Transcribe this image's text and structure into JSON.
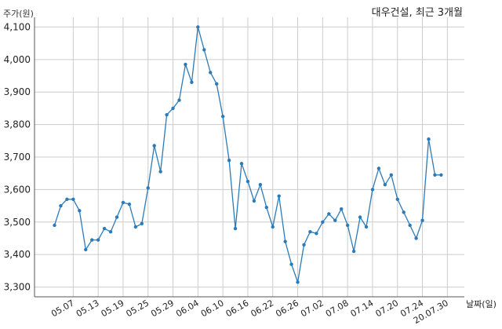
{
  "chart_data": {
    "type": "line",
    "title": "대우건설, 최근 3개월",
    "ylabel": "주가(원)",
    "xlabel": "날짜(일)",
    "ylim": [
      3270,
      4130
    ],
    "yticks": [
      "3,300",
      "3,400",
      "3,500",
      "3,600",
      "3,700",
      "3,800",
      "3,900",
      "4,000",
      "4,100"
    ],
    "ytick_values": [
      3300,
      3400,
      3500,
      3600,
      3700,
      3800,
      3900,
      4000,
      4100
    ],
    "xticks": [
      "05.07",
      "05.13",
      "05.19",
      "05.25",
      "05.29",
      "06.04",
      "06.10",
      "06.16",
      "06.22",
      "06.26",
      "07.02",
      "07.08",
      "07.14",
      "07.20",
      "07.24",
      "20.07.30"
    ],
    "xtick_index": [
      3,
      7,
      11,
      15,
      19,
      23,
      27,
      31,
      35,
      39,
      43,
      47,
      51,
      55,
      59,
      63
    ],
    "grid": true,
    "color": "#2b7bb9",
    "series": [
      {
        "values": [
          3490,
          3550,
          3570,
          3570,
          3535,
          3415,
          3445,
          3445,
          3480,
          3470,
          3515,
          3560,
          3555,
          3485,
          3495,
          3605,
          3735,
          3655,
          3830,
          3850,
          3875,
          3985,
          3930,
          4100,
          4030,
          3960,
          3925,
          3825,
          3690,
          3480,
          3680,
          3625,
          3565,
          3615,
          3545,
          3485,
          3580,
          3440,
          3370,
          3315,
          3430,
          3470,
          3465,
          3500,
          3525,
          3505,
          3540,
          3490,
          3410,
          3515,
          3485,
          3600,
          3665,
          3615,
          3645,
          3570,
          3530,
          3490,
          3450,
          3505,
          3755,
          3645,
          3645
        ]
      }
    ]
  }
}
